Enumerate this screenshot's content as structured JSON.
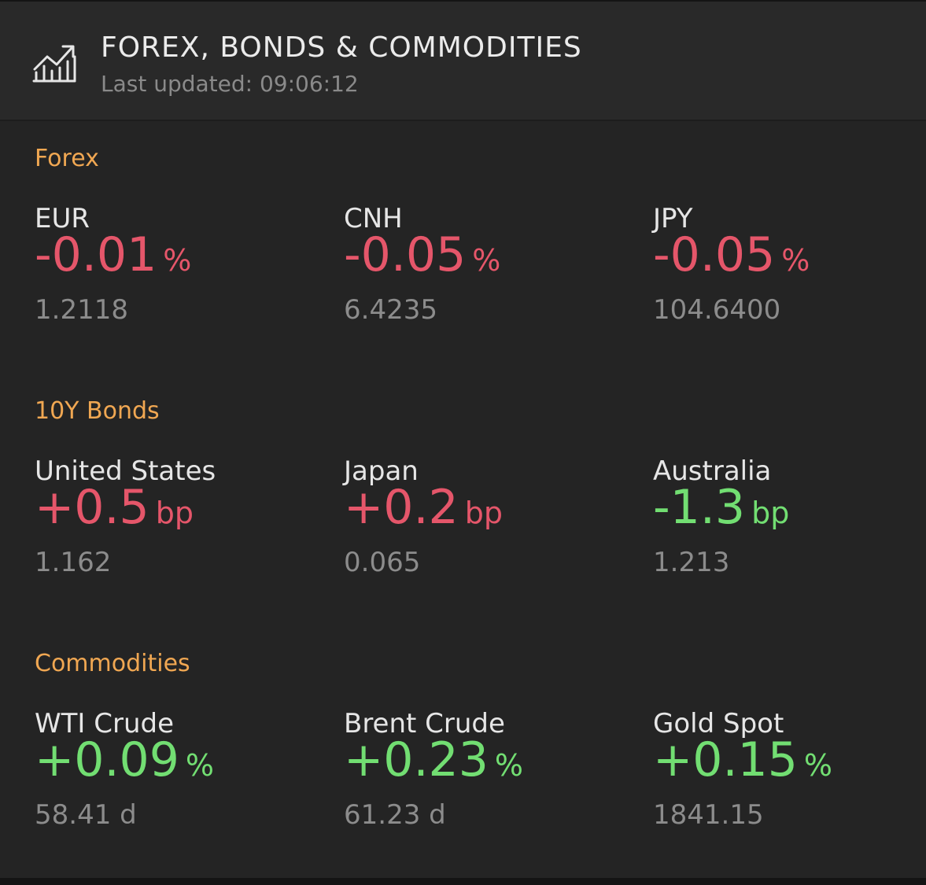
{
  "header": {
    "title": "FOREX, BONDS & COMMODITIES",
    "last_updated": "Last updated: 09:06:12",
    "icon": "chart-growth-icon"
  },
  "colors": {
    "section_title": "#f0a752",
    "negative": "#e5566a",
    "positive": "#72de72"
  },
  "sections": [
    {
      "title": "Forex",
      "items": [
        {
          "name": "EUR",
          "change": "-0.01",
          "unit": "%",
          "price": "1.2118",
          "tone": "neg"
        },
        {
          "name": "CNH",
          "change": "-0.05",
          "unit": "%",
          "price": "6.4235",
          "tone": "neg"
        },
        {
          "name": "JPY",
          "change": "-0.05",
          "unit": "%",
          "price": "104.6400",
          "tone": "neg"
        }
      ]
    },
    {
      "title": "10Y Bonds",
      "items": [
        {
          "name": "United States",
          "change": "+0.5",
          "unit": "bp",
          "price": "1.162",
          "tone": "neg"
        },
        {
          "name": "Japan",
          "change": "+0.2",
          "unit": "bp",
          "price": "0.065",
          "tone": "neg"
        },
        {
          "name": "Australia",
          "change": "-1.3",
          "unit": "bp",
          "price": "1.213",
          "tone": "pos"
        }
      ]
    },
    {
      "title": "Commodities",
      "items": [
        {
          "name": "WTI Crude",
          "change": "+0.09",
          "unit": "%",
          "price": "58.41 d",
          "tone": "pos"
        },
        {
          "name": "Brent Crude",
          "change": "+0.23",
          "unit": "%",
          "price": "61.23 d",
          "tone": "pos"
        },
        {
          "name": "Gold Spot",
          "change": "+0.15",
          "unit": "%",
          "price": "1841.15",
          "tone": "pos"
        }
      ]
    }
  ]
}
